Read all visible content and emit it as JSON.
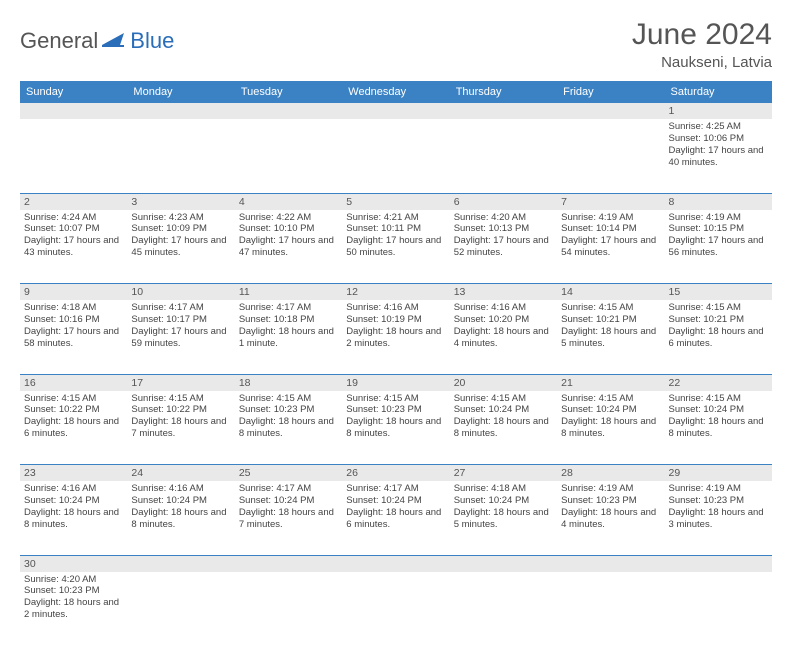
{
  "logo": {
    "part1": "General",
    "part2": "Blue"
  },
  "title": "June 2024",
  "location": "Naukseni, Latvia",
  "header_bg": "#3b82c4",
  "dow": [
    "Sunday",
    "Monday",
    "Tuesday",
    "Wednesday",
    "Thursday",
    "Friday",
    "Saturday"
  ],
  "weeks": [
    [
      null,
      null,
      null,
      null,
      null,
      null,
      {
        "n": "1",
        "sr": "4:25 AM",
        "ss": "10:06 PM",
        "dl": "17 hours and 40 minutes."
      }
    ],
    [
      {
        "n": "2",
        "sr": "4:24 AM",
        "ss": "10:07 PM",
        "dl": "17 hours and 43 minutes."
      },
      {
        "n": "3",
        "sr": "4:23 AM",
        "ss": "10:09 PM",
        "dl": "17 hours and 45 minutes."
      },
      {
        "n": "4",
        "sr": "4:22 AM",
        "ss": "10:10 PM",
        "dl": "17 hours and 47 minutes."
      },
      {
        "n": "5",
        "sr": "4:21 AM",
        "ss": "10:11 PM",
        "dl": "17 hours and 50 minutes."
      },
      {
        "n": "6",
        "sr": "4:20 AM",
        "ss": "10:13 PM",
        "dl": "17 hours and 52 minutes."
      },
      {
        "n": "7",
        "sr": "4:19 AM",
        "ss": "10:14 PM",
        "dl": "17 hours and 54 minutes."
      },
      {
        "n": "8",
        "sr": "4:19 AM",
        "ss": "10:15 PM",
        "dl": "17 hours and 56 minutes."
      }
    ],
    [
      {
        "n": "9",
        "sr": "4:18 AM",
        "ss": "10:16 PM",
        "dl": "17 hours and 58 minutes."
      },
      {
        "n": "10",
        "sr": "4:17 AM",
        "ss": "10:17 PM",
        "dl": "17 hours and 59 minutes."
      },
      {
        "n": "11",
        "sr": "4:17 AM",
        "ss": "10:18 PM",
        "dl": "18 hours and 1 minute."
      },
      {
        "n": "12",
        "sr": "4:16 AM",
        "ss": "10:19 PM",
        "dl": "18 hours and 2 minutes."
      },
      {
        "n": "13",
        "sr": "4:16 AM",
        "ss": "10:20 PM",
        "dl": "18 hours and 4 minutes."
      },
      {
        "n": "14",
        "sr": "4:15 AM",
        "ss": "10:21 PM",
        "dl": "18 hours and 5 minutes."
      },
      {
        "n": "15",
        "sr": "4:15 AM",
        "ss": "10:21 PM",
        "dl": "18 hours and 6 minutes."
      }
    ],
    [
      {
        "n": "16",
        "sr": "4:15 AM",
        "ss": "10:22 PM",
        "dl": "18 hours and 6 minutes."
      },
      {
        "n": "17",
        "sr": "4:15 AM",
        "ss": "10:22 PM",
        "dl": "18 hours and 7 minutes."
      },
      {
        "n": "18",
        "sr": "4:15 AM",
        "ss": "10:23 PM",
        "dl": "18 hours and 8 minutes."
      },
      {
        "n": "19",
        "sr": "4:15 AM",
        "ss": "10:23 PM",
        "dl": "18 hours and 8 minutes."
      },
      {
        "n": "20",
        "sr": "4:15 AM",
        "ss": "10:24 PM",
        "dl": "18 hours and 8 minutes."
      },
      {
        "n": "21",
        "sr": "4:15 AM",
        "ss": "10:24 PM",
        "dl": "18 hours and 8 minutes."
      },
      {
        "n": "22",
        "sr": "4:15 AM",
        "ss": "10:24 PM",
        "dl": "18 hours and 8 minutes."
      }
    ],
    [
      {
        "n": "23",
        "sr": "4:16 AM",
        "ss": "10:24 PM",
        "dl": "18 hours and 8 minutes."
      },
      {
        "n": "24",
        "sr": "4:16 AM",
        "ss": "10:24 PM",
        "dl": "18 hours and 8 minutes."
      },
      {
        "n": "25",
        "sr": "4:17 AM",
        "ss": "10:24 PM",
        "dl": "18 hours and 7 minutes."
      },
      {
        "n": "26",
        "sr": "4:17 AM",
        "ss": "10:24 PM",
        "dl": "18 hours and 6 minutes."
      },
      {
        "n": "27",
        "sr": "4:18 AM",
        "ss": "10:24 PM",
        "dl": "18 hours and 5 minutes."
      },
      {
        "n": "28",
        "sr": "4:19 AM",
        "ss": "10:23 PM",
        "dl": "18 hours and 4 minutes."
      },
      {
        "n": "29",
        "sr": "4:19 AM",
        "ss": "10:23 PM",
        "dl": "18 hours and 3 minutes."
      }
    ],
    [
      {
        "n": "30",
        "sr": "4:20 AM",
        "ss": "10:23 PM",
        "dl": "18 hours and 2 minutes."
      },
      null,
      null,
      null,
      null,
      null,
      null
    ]
  ],
  "labels": {
    "sunrise": "Sunrise:",
    "sunset": "Sunset:",
    "daylight": "Daylight:"
  }
}
